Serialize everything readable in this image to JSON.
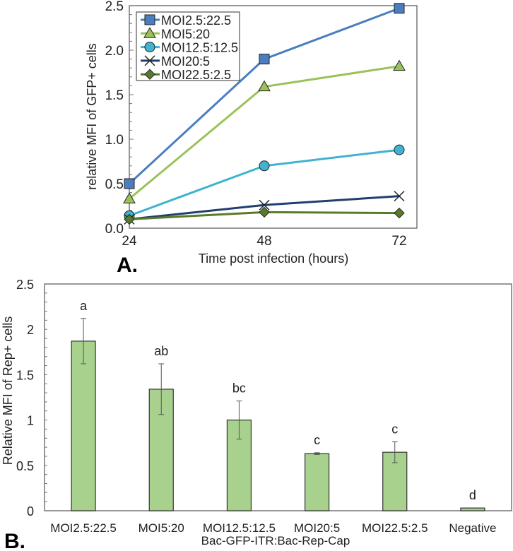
{
  "chart_data": [
    {
      "type": "line",
      "panel_label": "A.",
      "xlabel": "Time post infection (hours)",
      "ylabel": "relative MFI of GFP+ cells",
      "x": [
        24,
        48,
        72
      ],
      "x_tick_labels": [
        "24",
        "48",
        "72"
      ],
      "ylim": [
        0,
        2.5
      ],
      "y_tick_labels": [
        "0.0",
        "0.5",
        "1.0",
        "1.5",
        "2.0",
        "2.5"
      ],
      "legend_position": "top-left",
      "series": [
        {
          "name": "MOI2.5:22.5",
          "values": [
            0.5,
            1.9,
            2.47
          ],
          "color": "#4a7ebf",
          "marker": "square"
        },
        {
          "name": "MOI5:20",
          "values": [
            0.33,
            1.59,
            1.82
          ],
          "color": "#9bc25a",
          "marker": "triangle"
        },
        {
          "name": "MOI12.5:12.5",
          "values": [
            0.14,
            0.7,
            0.88
          ],
          "color": "#3fb3d0",
          "marker": "circle"
        },
        {
          "name": "MOI20:5",
          "values": [
            0.1,
            0.26,
            0.36
          ],
          "color": "#1f3f6e",
          "marker": "x"
        },
        {
          "name": "MOI22.5:2.5",
          "values": [
            0.1,
            0.18,
            0.17
          ],
          "color": "#5a7a2a",
          "marker": "diamond"
        }
      ]
    },
    {
      "type": "bar",
      "panel_label": "B.",
      "xlabel": "Bac-GFP-ITR:Bac-Rep-Cap",
      "ylabel": "Relative MFI of Rep+ cells",
      "categories": [
        "MOI2.5:22.5",
        "MOI5:20",
        "MOI12.5:12.5",
        "MOI20:5",
        "MOI22.5:2.5",
        "Negative"
      ],
      "values": [
        1.87,
        1.34,
        1.0,
        0.63,
        0.645,
        0.03
      ],
      "errors": [
        0.25,
        0.28,
        0.21,
        0.01,
        0.115,
        0.0
      ],
      "significance_letters": [
        "a",
        "ab",
        "bc",
        "c",
        "c",
        "d"
      ],
      "ylim": [
        0,
        2.5
      ],
      "y_tick_labels": [
        "0",
        "0.5",
        "1",
        "1.5",
        "2",
        "2.5"
      ],
      "bar_color": "#a9d18e"
    }
  ]
}
